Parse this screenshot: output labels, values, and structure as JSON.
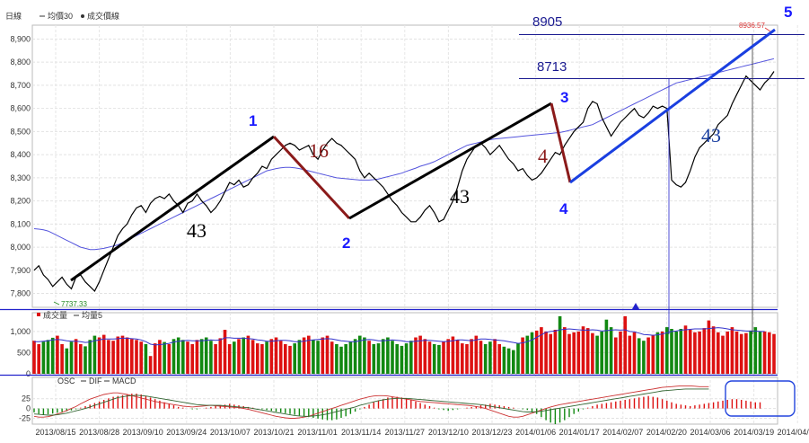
{
  "chart_data": [
    {
      "type": "line",
      "panel": "price",
      "legend": [
        "日線",
        "— 均價30",
        "● 成交價線"
      ],
      "ylim": [
        7740,
        8960
      ],
      "yticks": [
        7800,
        7900,
        8000,
        8100,
        8200,
        8300,
        8400,
        8500,
        8600,
        8700,
        8800,
        8900
      ],
      "ytick_labels": [
        "7,800",
        "7,900",
        "8,000",
        "8,100",
        "8,200",
        "8,300",
        "8,400",
        "8,500",
        "8,600",
        "8,700",
        "8,800",
        "8,900"
      ],
      "x_count": 160,
      "series": [
        {
          "values": [
            7900,
            7920,
            7880,
            7860,
            7830,
            7850,
            7870,
            7840,
            7820,
            7870,
            7880,
            7850,
            7830,
            7810,
            7850,
            7900,
            7950,
            8000,
            8050,
            8080,
            8100,
            8140,
            8170,
            8180,
            8150,
            8190,
            8210,
            8220,
            8210,
            8230,
            8200,
            8180,
            8150,
            8190,
            8200,
            8230,
            8200,
            8180,
            8150,
            8170,
            8200,
            8240,
            8280,
            8270,
            8290,
            8260,
            8270,
            8300,
            8320,
            8350,
            8340,
            8380,
            8400,
            8420,
            8440,
            8450,
            8440,
            8420,
            8430,
            8440,
            8400,
            8380,
            8420,
            8450,
            8470,
            8450,
            8440,
            8420,
            8400,
            8380,
            8330,
            8300,
            8320,
            8300,
            8280,
            8260,
            8230,
            8200,
            8180,
            8150,
            8130,
            8110,
            8110,
            8130,
            8160,
            8180,
            8150,
            8110,
            8120,
            8160,
            8200,
            8260,
            8330,
            8380,
            8410,
            8440,
            8450,
            8430,
            8400,
            8420,
            8440,
            8410,
            8380,
            8360,
            8330,
            8340,
            8310,
            8290,
            8300,
            8320,
            8350,
            8380,
            8410,
            8400,
            8440,
            8470,
            8500,
            8520,
            8540,
            8600,
            8630,
            8620,
            8560,
            8520,
            8480,
            8510,
            8540,
            8560,
            8580,
            8600,
            8570,
            8560,
            8580,
            8610,
            8600,
            8610,
            8600,
            8290,
            8270,
            8260,
            8280,
            8330,
            8390,
            8430,
            8450,
            8470,
            8490,
            8530,
            8550,
            8570,
            8620,
            8660,
            8700,
            8740,
            8720,
            8700,
            8680,
            8710,
            8730,
            8760
          ],
          "color": "#000000"
        },
        {
          "values": [
            8080,
            8078,
            8075,
            8070,
            8060,
            8050,
            8040,
            8030,
            8020,
            8010,
            8000,
            7995,
            7990,
            7990,
            7992,
            7995,
            8000,
            8005,
            8010,
            8020,
            8030,
            8040,
            8050,
            8060,
            8070,
            8080,
            8090,
            8100,
            8110,
            8120,
            8130,
            8140,
            8150,
            8160,
            8170,
            8180,
            8190,
            8200,
            8210,
            8220,
            8230,
            8240,
            8250,
            8260,
            8270,
            8280,
            8290,
            8300,
            8310,
            8320,
            8330,
            8335,
            8340,
            8343,
            8345,
            8345,
            8343,
            8340,
            8335,
            8330,
            8325,
            8320,
            8315,
            8310,
            8305,
            8300,
            8298,
            8296,
            8294,
            8292,
            8290,
            8290,
            8290,
            8292,
            8295,
            8300,
            8305,
            8310,
            8315,
            8320,
            8328,
            8335,
            8342,
            8350,
            8356,
            8362,
            8370,
            8380,
            8390,
            8400,
            8410,
            8420,
            8430,
            8440,
            8445,
            8450,
            8455,
            8460,
            8465,
            8468,
            8470,
            8472,
            8474,
            8476,
            8478,
            8480,
            8482,
            8484,
            8486,
            8488,
            8490,
            8492,
            8494,
            8496,
            8500,
            8505,
            8510,
            8515,
            8520,
            8525,
            8530,
            8540,
            8550,
            8560,
            8570,
            8580,
            8590,
            8600,
            8610,
            8620,
            8630,
            8640,
            8650,
            8660,
            8670,
            8680,
            8690,
            8700,
            8710,
            8715,
            8720,
            8725,
            8730,
            8735,
            8740,
            8745,
            8750,
            8755,
            8760,
            8765,
            8770,
            8775,
            8780,
            8785,
            8790,
            8795,
            8800,
            8805,
            8810,
            8815
          ],
          "color": "#5555dd"
        }
      ],
      "annotations": {
        "min_label": "7737.33",
        "max_label": "8936.57",
        "levels": [
          "8905",
          "8713"
        ],
        "wave_numbers": [
          "1",
          "2",
          "3",
          "4",
          "5"
        ],
        "durations": [
          "43",
          "16",
          "43",
          "4",
          "43"
        ]
      }
    },
    {
      "type": "bar",
      "panel": "volume",
      "legend": [
        "成交量",
        "— 均量5"
      ],
      "ylim": [
        0,
        1400
      ],
      "yticks": [
        0,
        500,
        1000
      ],
      "ytick_labels": [
        "0",
        "500",
        "1,000"
      ],
      "values": [
        780,
        700,
        760,
        800,
        850,
        900,
        700,
        600,
        760,
        820,
        700,
        650,
        800,
        900,
        860,
        920,
        800,
        780,
        880,
        900,
        860,
        820,
        800,
        760,
        700,
        420,
        720,
        800,
        750,
        700,
        820,
        860,
        800,
        760,
        700,
        800,
        820,
        860,
        780,
        700,
        840,
        1040,
        700,
        760,
        820,
        860,
        900,
        800,
        720,
        700,
        760,
        820,
        860,
        780,
        700,
        660,
        720,
        800,
        860,
        900,
        800,
        780,
        860,
        900,
        760,
        700,
        640,
        700,
        760,
        820,
        900,
        860,
        780,
        700,
        720,
        820,
        860,
        780,
        700,
        660,
        720,
        780,
        860,
        900,
        820,
        760,
        700,
        680,
        760,
        820,
        880,
        800,
        720,
        700,
        820,
        900,
        780,
        700,
        760,
        820,
        700,
        640,
        600,
        560,
        720,
        860,
        900,
        980,
        1020,
        1100,
        1000,
        940,
        1040,
        1360,
        1100,
        940,
        980,
        1000,
        1120,
        1080,
        960,
        900,
        1000,
        1280,
        1100,
        860,
        1000,
        1360,
        900,
        980,
        840,
        780,
        860,
        920,
        980,
        1000,
        1100,
        1060,
        1000,
        1060,
        1140,
        1040,
        980,
        1000,
        1080,
        1260,
        1120,
        980,
        900,
        1000,
        1100,
        1000,
        940,
        960,
        1020,
        1100,
        1000,
        1000,
        980,
        940
      ],
      "ma_values": [
        760,
        760,
        770,
        780,
        800,
        810,
        800,
        780,
        770,
        770,
        760,
        740,
        750,
        780,
        800,
        820,
        820,
        820,
        830,
        840,
        840,
        830,
        820,
        800,
        760,
        700,
        680,
        690,
        700,
        720,
        750,
        770,
        780,
        790,
        780,
        780,
        780,
        790,
        800,
        790,
        800,
        850,
        850,
        840,
        840,
        840,
        830,
        820,
        800,
        790,
        770,
        770,
        780,
        790,
        790,
        780,
        760,
        760,
        770,
        790,
        800,
        810,
        820,
        830,
        820,
        800,
        780,
        770,
        760,
        760,
        780,
        800,
        810,
        800,
        780,
        780,
        790,
        800,
        790,
        780,
        760,
        760,
        770,
        780,
        790,
        790,
        780,
        770,
        760,
        770,
        780,
        800,
        800,
        790,
        780,
        800,
        820,
        820,
        810,
        800,
        790,
        780,
        760,
        740,
        720,
        730,
        760,
        800,
        860,
        920,
        980,
        1000,
        1010,
        1040,
        1050,
        1060,
        1050,
        1040,
        1030,
        1030,
        1040,
        1030,
        1010,
        1020,
        1030,
        1040,
        1030,
        1040,
        1000,
        990,
        960,
        930,
        920,
        910,
        920,
        940,
        970,
        1000,
        1010,
        1030,
        1040,
        1050,
        1060,
        1060,
        1060,
        1070,
        1080,
        1090,
        1080,
        1060,
        1040,
        1030,
        1020,
        1010,
        1010,
        1010,
        1000,
        1000
      ],
      "colors": {
        "up": "#dd1111",
        "down": "#118811",
        "ma": "#3333cc"
      }
    },
    {
      "type": "bar",
      "panel": "macd",
      "legend": [
        "OSC",
        "— DIF",
        "— MACD"
      ],
      "ylim": [
        -40,
        75
      ],
      "yticks": [
        -25,
        0,
        25
      ],
      "ytick_labels": [
        "-25",
        "0",
        "25"
      ],
      "xtick_labels": [
        "2013/08/15",
        "2013/08/28",
        "2013/09/10",
        "2013/09/24",
        "2013/10/07",
        "2013/10/21",
        "2013/11/01",
        "2013/11/14",
        "2013/11/27",
        "2013/12/10",
        "2013/12/23",
        "2014/01/06",
        "2014/01/17",
        "2014/02/07",
        "2014/02/20",
        "2014/03/06",
        "2014/03/19",
        "2014/04/01"
      ],
      "osc_values": [
        -10,
        -14,
        -16,
        -15,
        -13,
        -11,
        -9,
        -7,
        -5,
        -2,
        2,
        6,
        10,
        14,
        18,
        22,
        26,
        30,
        32,
        34,
        36,
        38,
        38,
        36,
        32,
        28,
        24,
        20,
        16,
        12,
        8,
        4,
        2,
        0,
        -2,
        -2,
        0,
        2,
        4,
        6,
        8,
        10,
        12,
        10,
        8,
        6,
        4,
        2,
        0,
        -2,
        -4,
        -6,
        -8,
        -10,
        -12,
        -14,
        -16,
        -18,
        -20,
        -22,
        -24,
        -26,
        -28,
        -30,
        -30,
        -28,
        -24,
        -20,
        -14,
        -8,
        -2,
        4,
        10,
        16,
        20,
        24,
        28,
        30,
        30,
        28,
        26,
        22,
        18,
        14,
        10,
        6,
        2,
        -2,
        -4,
        -6,
        -4,
        -2,
        0,
        2,
        4,
        6,
        8,
        10,
        12,
        10,
        8,
        6,
        4,
        2,
        0,
        -2,
        -4,
        -8,
        -14,
        -22,
        -30,
        -36,
        -40,
        -36,
        -30,
        -22,
        -14,
        -8,
        -2,
        2,
        6,
        10,
        12,
        14,
        16,
        18,
        20,
        22,
        24,
        26,
        28,
        30,
        32,
        30,
        28,
        24,
        20,
        16,
        12,
        10,
        8,
        6,
        8,
        10,
        12,
        14,
        16,
        18,
        20,
        22,
        24,
        24,
        22,
        20,
        18,
        16,
        16
      ],
      "dif_values": [
        -20,
        -22,
        -22,
        -21,
        -18,
        -14,
        -10,
        -5,
        0,
        5,
        12,
        18,
        24,
        28,
        32,
        36,
        38,
        40,
        40,
        38,
        36,
        33,
        30,
        27,
        24,
        21,
        18,
        16,
        14,
        12,
        10,
        8,
        6,
        5,
        4,
        5,
        6,
        7,
        8,
        7,
        6,
        5,
        4,
        3,
        2,
        0,
        -2,
        -5,
        -8,
        -11,
        -14,
        -17,
        -20,
        -22,
        -24,
        -25,
        -25,
        -24,
        -22,
        -20,
        -16,
        -12,
        -8,
        -4,
        0,
        4,
        8,
        12,
        16,
        20,
        24,
        27,
        30,
        32,
        33,
        33,
        32,
        30,
        28,
        26,
        24,
        22,
        20,
        18,
        17,
        16,
        15,
        14,
        13,
        12,
        11,
        10,
        9,
        8,
        7,
        5,
        3,
        0,
        -4,
        -8,
        -12,
        -16,
        -20,
        -22,
        -22,
        -20,
        -16,
        -12,
        -8,
        -4,
        0,
        4,
        7,
        10,
        12,
        14,
        16,
        18,
        20,
        22,
        24,
        26,
        28,
        30,
        32,
        34,
        36,
        38,
        40,
        42,
        44,
        46,
        48,
        50,
        52,
        54,
        55,
        56,
        57,
        58,
        58,
        58,
        57,
        56,
        56,
        56
      ],
      "macd_values": [
        -14,
        -15,
        -16,
        -17,
        -17,
        -16,
        -14,
        -12,
        -9,
        -6,
        -3,
        0,
        4,
        8,
        12,
        16,
        20,
        24,
        28,
        30,
        32,
        33,
        34,
        33,
        32,
        30,
        28,
        26,
        24,
        22,
        20,
        18,
        16,
        14,
        12,
        10,
        9,
        8,
        8,
        8,
        8,
        7,
        6,
        5,
        4,
        3,
        2,
        0,
        -2,
        -4,
        -6,
        -8,
        -10,
        -12,
        -14,
        -16,
        -18,
        -19,
        -20,
        -20,
        -19,
        -18,
        -16,
        -14,
        -11,
        -8,
        -5,
        -2,
        1,
        4,
        8,
        11,
        14,
        17,
        20,
        22,
        24,
        25,
        26,
        26,
        26,
        25,
        24,
        23,
        22,
        21,
        20,
        19,
        18,
        17,
        16,
        15,
        14,
        13,
        12,
        11,
        10,
        8,
        6,
        4,
        2,
        0,
        -2,
        -4,
        -6,
        -8,
        -9,
        -9,
        -8,
        -7,
        -5,
        -3,
        -1,
        1,
        3,
        5,
        7,
        9,
        11,
        13,
        15,
        17,
        19,
        21,
        23,
        25,
        27,
        29,
        31,
        33,
        35,
        37,
        39,
        41,
        43,
        45,
        46,
        47,
        48,
        49,
        50,
        50,
        50,
        50,
        50,
        50
      ],
      "colors": {
        "osc_up": "#dd1111",
        "osc_down": "#118811",
        "dif": "#cc3333",
        "macd": "#336633"
      }
    }
  ],
  "labels": {
    "price_legend_title": "日線",
    "price_legend_ma": "均價30",
    "price_legend_close": "成交價線",
    "vol_legend_vol": "成交量",
    "vol_legend_ma": "均量5",
    "macd_legend_osc": "OSC",
    "macd_legend_dif": "DIF",
    "macd_legend_macd": "MACD"
  }
}
